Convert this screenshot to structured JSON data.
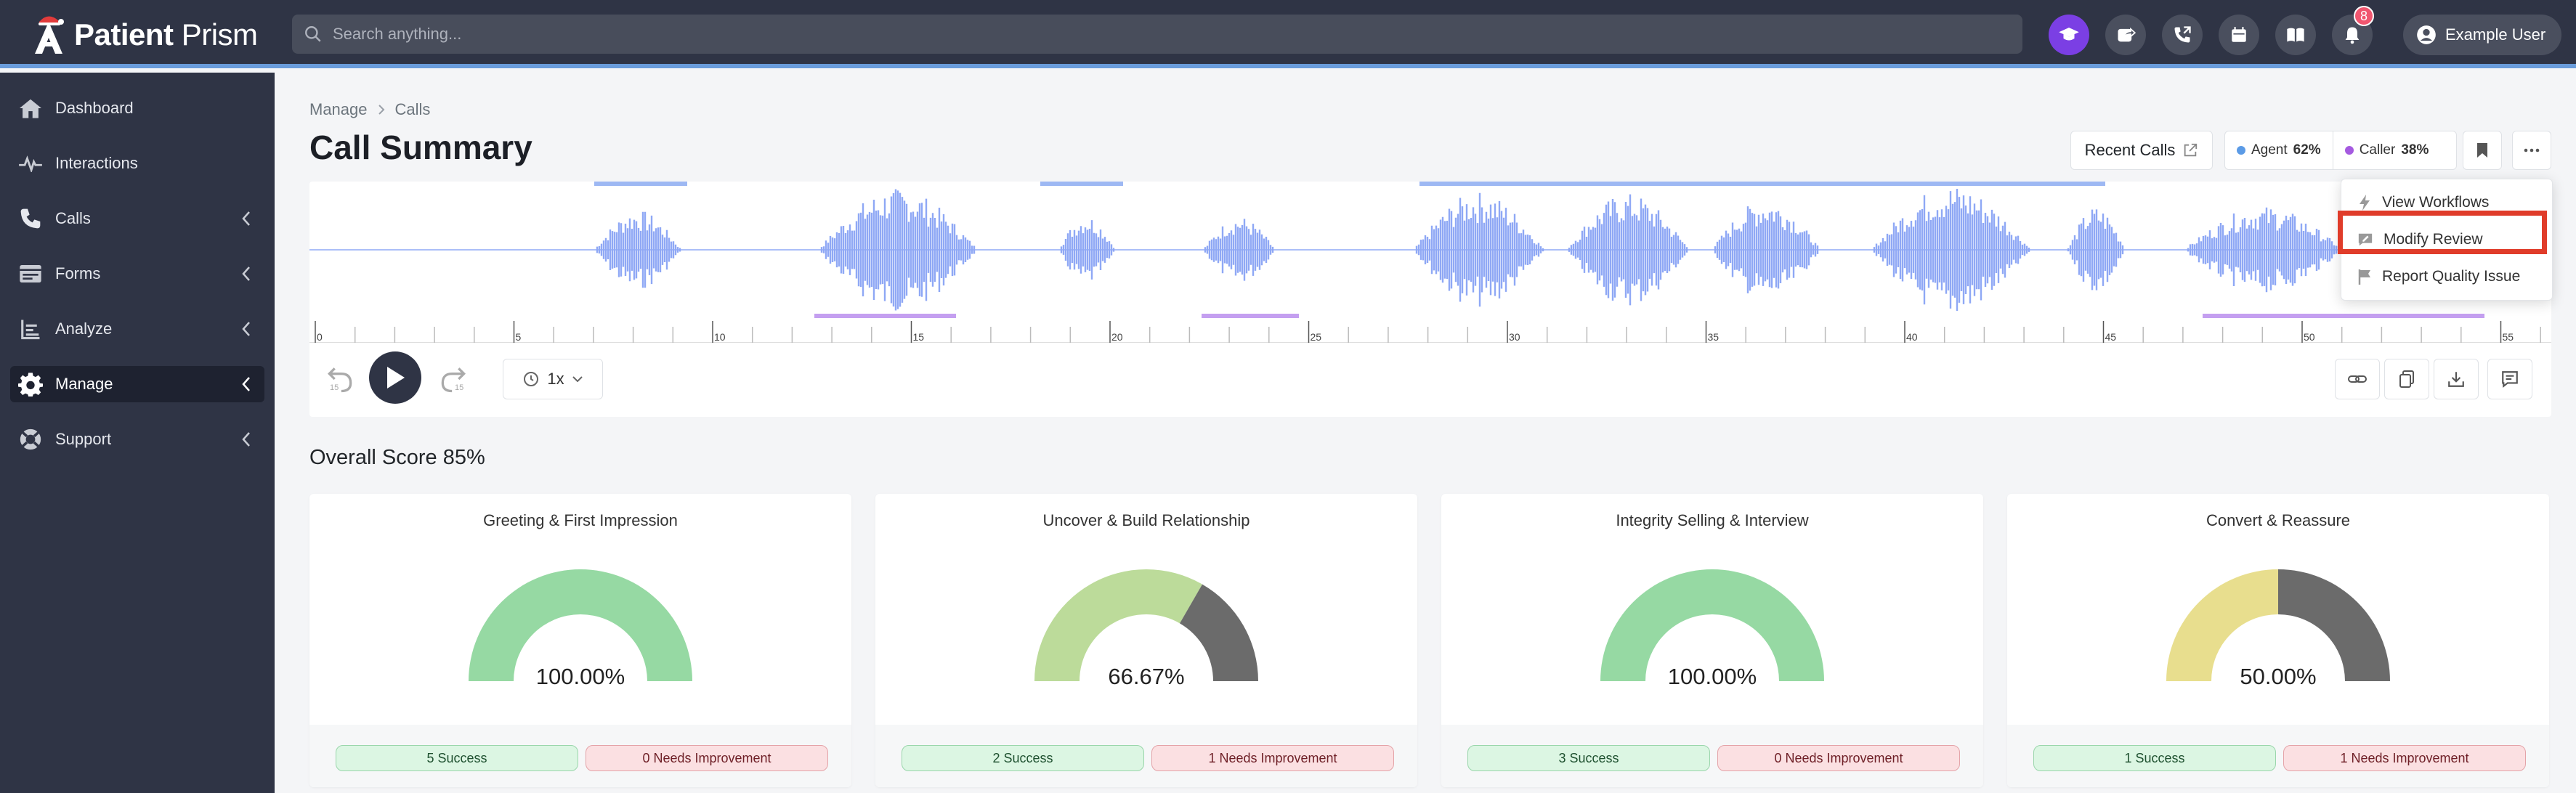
{
  "app": {
    "name_bold": "Patient",
    "name_rest": " Prism"
  },
  "search": {
    "placeholder": "Search anything..."
  },
  "header": {
    "notifications_count": "8",
    "user_name": "Example User"
  },
  "sidebar": {
    "items": [
      {
        "label": "Dashboard",
        "icon": "home-icon"
      },
      {
        "label": "Interactions",
        "icon": "pulse-icon"
      },
      {
        "label": "Calls",
        "icon": "phone-icon"
      },
      {
        "label": "Forms",
        "icon": "form-icon"
      },
      {
        "label": "Analyze",
        "icon": "analyze-icon"
      },
      {
        "label": "Manage",
        "icon": "gear-icon",
        "active": true
      },
      {
        "label": "Support",
        "icon": "lifebuoy-icon"
      }
    ]
  },
  "breadcrumb": {
    "parent": "Manage",
    "current": "Calls"
  },
  "page": {
    "title": "Call Summary"
  },
  "toolbar": {
    "recent_calls": "Recent Calls",
    "agent_label": "Agent",
    "agent_pct": "62%",
    "caller_label": "Caller",
    "caller_pct": "38%"
  },
  "colors": {
    "agent": "#5b9be6",
    "caller": "#a55ae0",
    "waveform": "#8fa8f5",
    "accent": "#7b3fe4"
  },
  "timeline": {
    "ticks": [
      "0",
      "5",
      "10",
      "15",
      "20",
      "25",
      "30",
      "35",
      "40",
      "45",
      "50",
      "55"
    ]
  },
  "player": {
    "rewind": "15",
    "forward": "15",
    "speed": "1x"
  },
  "dropdown": {
    "items": [
      "View Workflows",
      "Modify Review",
      "Report Quality Issue"
    ]
  },
  "overall": {
    "label": "Overall Score 85%"
  },
  "cards": [
    {
      "title": "Greeting & First Impression",
      "value": "100.00%",
      "score": 1.0,
      "color": "#96d9a3",
      "success": "5 Success",
      "needs": "0 Needs Improvement"
    },
    {
      "title": "Uncover & Build Relationship",
      "value": "66.67%",
      "score": 0.6667,
      "color": "#bcdb9a",
      "success": "2 Success",
      "needs": "1 Needs Improvement"
    },
    {
      "title": "Integrity Selling & Interview",
      "value": "100.00%",
      "score": 1.0,
      "color": "#96d9a3",
      "success": "3 Success",
      "needs": "0 Needs Improvement"
    },
    {
      "title": "Convert & Reassure",
      "value": "50.00%",
      "score": 0.5,
      "color": "#e8de8e",
      "success": "1 Success",
      "needs": "1 Needs Improvement"
    }
  ]
}
